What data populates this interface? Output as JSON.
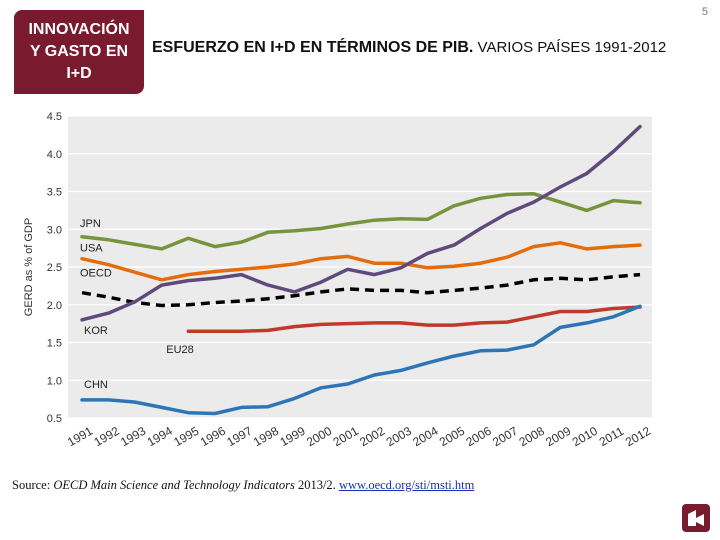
{
  "page_number": "5",
  "section_box": {
    "line1": "INNOVACIÓN",
    "line2": "Y GASTO EN",
    "line3": "I+D"
  },
  "title": {
    "bold": "ESFUERZO EN I+D EN TÉRMINOS DE PIB.",
    "rest": "VARIOS PAÍSES 1991-2012"
  },
  "source": {
    "prefix": "Source: ",
    "italic": "OECD Main Science and Technology Indicators",
    "suffix": " 2013/2. ",
    "link": "www.oecd.org/sti/msti.htm"
  },
  "colors": {
    "jpn": "#77933c",
    "usa": "#e46c0a",
    "oecd": "#000000",
    "kor": "#604a7b",
    "eu28": "#c0392b",
    "chn": "#2e75b6",
    "brand": "#7a1a2e"
  },
  "chart_data": {
    "type": "line",
    "title": "",
    "xlabel": "",
    "ylabel": "GERD as % of GDP",
    "ylim": [
      0.5,
      4.5
    ],
    "yticks": [
      "0.5",
      "1.0",
      "1.5",
      "2.0",
      "2.5",
      "3.0",
      "3.5",
      "4.0",
      "4.5"
    ],
    "ytick_values": [
      0.5,
      1.0,
      1.5,
      2.0,
      2.5,
      3.0,
      3.5,
      4.0,
      4.5
    ],
    "x": [
      "1991",
      "1992",
      "1993",
      "1994",
      "1995",
      "1996",
      "1997",
      "1998",
      "1999",
      "2000",
      "2001",
      "2002",
      "2003",
      "2004",
      "2005",
      "2006",
      "2007",
      "2008",
      "2009",
      "2010",
      "2011",
      "2012"
    ],
    "grid": true,
    "series": [
      {
        "name": "JPN",
        "color_key": "jpn",
        "dashed": false,
        "values": [
          2.9,
          2.86,
          2.8,
          2.74,
          2.88,
          2.77,
          2.83,
          2.96,
          2.98,
          3.01,
          3.07,
          3.12,
          3.14,
          3.13,
          3.31,
          3.41,
          3.46,
          3.47,
          3.36,
          3.25,
          3.38,
          3.35
        ]
      },
      {
        "name": "USA",
        "color_key": "usa",
        "dashed": false,
        "values": [
          2.61,
          2.53,
          2.43,
          2.33,
          2.4,
          2.44,
          2.47,
          2.5,
          2.54,
          2.61,
          2.64,
          2.55,
          2.55,
          2.49,
          2.51,
          2.55,
          2.63,
          2.77,
          2.82,
          2.74,
          2.77,
          2.79
        ]
      },
      {
        "name": "OECD",
        "color_key": "oecd",
        "dashed": true,
        "values": [
          2.16,
          2.1,
          2.03,
          1.99,
          2.0,
          2.03,
          2.05,
          2.08,
          2.12,
          2.17,
          2.21,
          2.19,
          2.19,
          2.16,
          2.19,
          2.22,
          2.26,
          2.33,
          2.35,
          2.33,
          2.37,
          2.4
        ]
      },
      {
        "name": "KOR",
        "color_key": "kor",
        "dashed": false,
        "values": [
          1.8,
          1.89,
          2.04,
          2.26,
          2.32,
          2.35,
          2.4,
          2.26,
          2.17,
          2.3,
          2.47,
          2.4,
          2.49,
          2.68,
          2.79,
          3.01,
          3.21,
          3.36,
          3.56,
          3.74,
          4.03,
          4.36
        ]
      },
      {
        "name": "EU28",
        "color_key": "eu28",
        "dashed": false,
        "values": [
          null,
          null,
          null,
          null,
          1.65,
          1.65,
          1.65,
          1.66,
          1.71,
          1.74,
          1.75,
          1.76,
          1.76,
          1.73,
          1.73,
          1.76,
          1.77,
          1.84,
          1.91,
          1.91,
          1.95,
          1.97
        ]
      },
      {
        "name": "CHN",
        "color_key": "chn",
        "dashed": false,
        "values": [
          0.74,
          0.74,
          0.71,
          0.64,
          0.57,
          0.56,
          0.64,
          0.65,
          0.76,
          0.9,
          0.95,
          1.07,
          1.13,
          1.23,
          1.32,
          1.39,
          1.4,
          1.47,
          1.7,
          1.76,
          1.84,
          1.98
        ]
      }
    ]
  }
}
